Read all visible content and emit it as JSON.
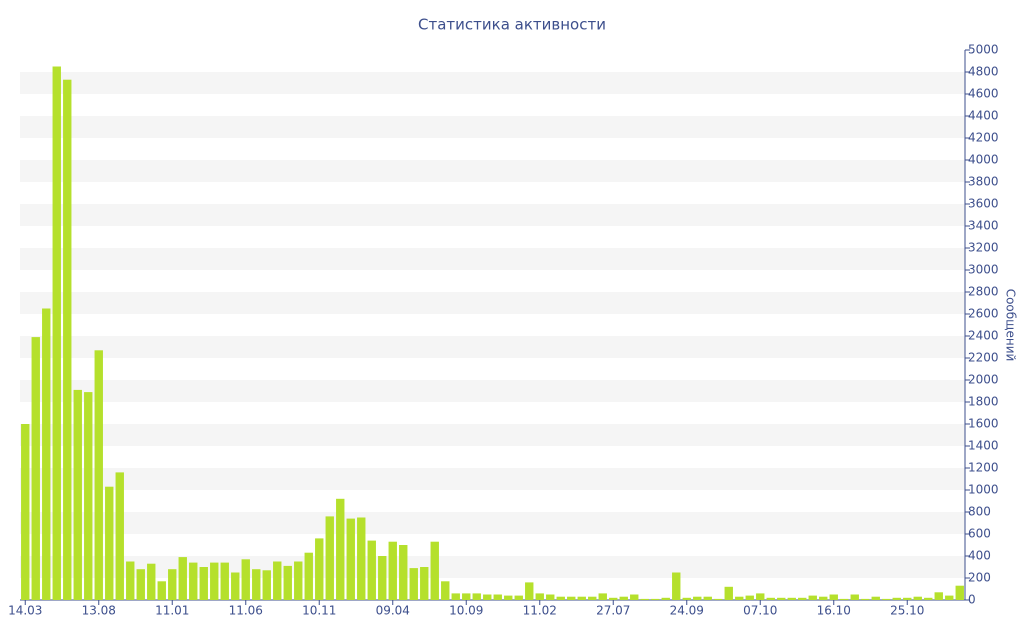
{
  "chart_data": {
    "type": "bar",
    "title": "Статистика активности",
    "y_axis_label": "Сообщений",
    "categories": [
      "14.03",
      null,
      null,
      null,
      null,
      null,
      null,
      "13.08",
      null,
      null,
      null,
      null,
      null,
      null,
      "11.01",
      null,
      null,
      null,
      null,
      null,
      null,
      "11.06",
      null,
      null,
      null,
      null,
      null,
      null,
      "10.11",
      null,
      null,
      null,
      null,
      null,
      null,
      "09.04",
      null,
      null,
      null,
      null,
      null,
      null,
      "10.09",
      null,
      null,
      null,
      null,
      null,
      null,
      "11.02",
      null,
      null,
      null,
      null,
      null,
      null,
      "27.07",
      null,
      null,
      null,
      null,
      null,
      null,
      "24.09",
      null,
      null,
      null,
      null,
      null,
      null,
      "07.10",
      null,
      null,
      null,
      null,
      null,
      null,
      "16.10",
      null,
      null,
      null,
      null,
      null,
      null,
      "25.10",
      null,
      null,
      null,
      null,
      null
    ],
    "values": [
      1600,
      2390,
      2650,
      4850,
      4730,
      1910,
      1890,
      2270,
      1030,
      1160,
      350,
      280,
      330,
      170,
      280,
      390,
      340,
      300,
      340,
      340,
      250,
      370,
      280,
      270,
      350,
      310,
      350,
      430,
      560,
      760,
      920,
      740,
      750,
      540,
      400,
      530,
      500,
      290,
      300,
      530,
      170,
      60,
      60,
      60,
      50,
      50,
      40,
      40,
      160,
      60,
      50,
      30,
      30,
      30,
      30,
      60,
      20,
      30,
      50,
      10,
      10,
      20,
      250,
      20,
      30,
      30,
      10,
      120,
      30,
      40,
      60,
      20,
      20,
      20,
      20,
      40,
      30,
      50,
      10,
      50,
      10,
      30,
      10,
      20,
      20,
      30,
      20,
      70,
      40,
      130
    ],
    "color": "#b5e02c",
    "ylim": [
      0,
      5000
    ],
    "yticks": [
      0,
      200,
      400,
      600,
      800,
      1000,
      1200,
      1400,
      1600,
      1800,
      2000,
      2200,
      2400,
      2600,
      2800,
      3000,
      3200,
      3400,
      3600,
      3800,
      4000,
      4200,
      4400,
      4600,
      4800,
      5000
    ],
    "alternate_bands": true,
    "band_color": "#f5f5f5"
  }
}
